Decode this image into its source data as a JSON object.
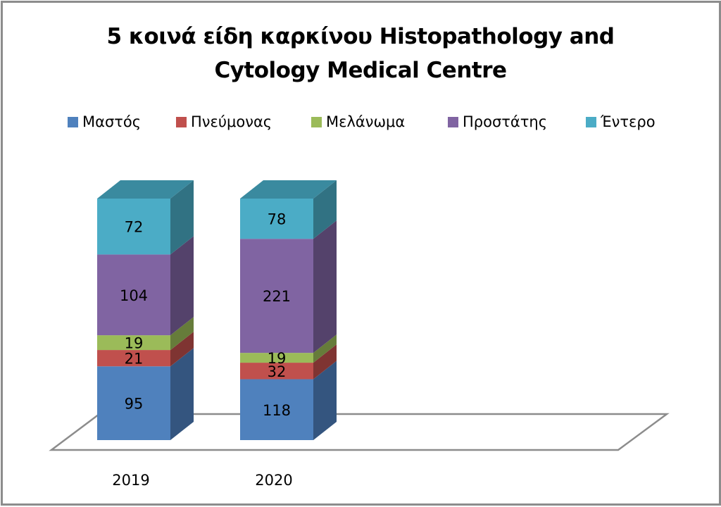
{
  "chart_data": {
    "type": "bar",
    "subtype": "100% stacked 3D column",
    "title_lines": [
      "5 κοινά είδη καρκίνου Histopathology and",
      "Cytology Medical Centre"
    ],
    "categories": [
      "2019",
      "2020"
    ],
    "series": [
      {
        "name": "Μαστός",
        "color": "#4f81bd",
        "side": "#34557f",
        "values": [
          95,
          118
        ]
      },
      {
        "name": "Πνεύμονας",
        "color": "#c0504d",
        "side": "#7f3432",
        "values": [
          21,
          32
        ]
      },
      {
        "name": "Μελάνωμα",
        "color": "#9bbb59",
        "side": "#667c3a",
        "values": [
          19,
          19
        ]
      },
      {
        "name": "Προστάτης",
        "color": "#8064a2",
        "side": "#54426b",
        "values": [
          104,
          221
        ]
      },
      {
        "name": "Έντερο",
        "color": "#4bacc6",
        "side": "#317283",
        "top": "#3a8a9f",
        "values": [
          72,
          78
        ]
      }
    ],
    "data_labels": true,
    "legend_position": "top",
    "grid": false,
    "xlabel": "",
    "ylabel": ""
  }
}
